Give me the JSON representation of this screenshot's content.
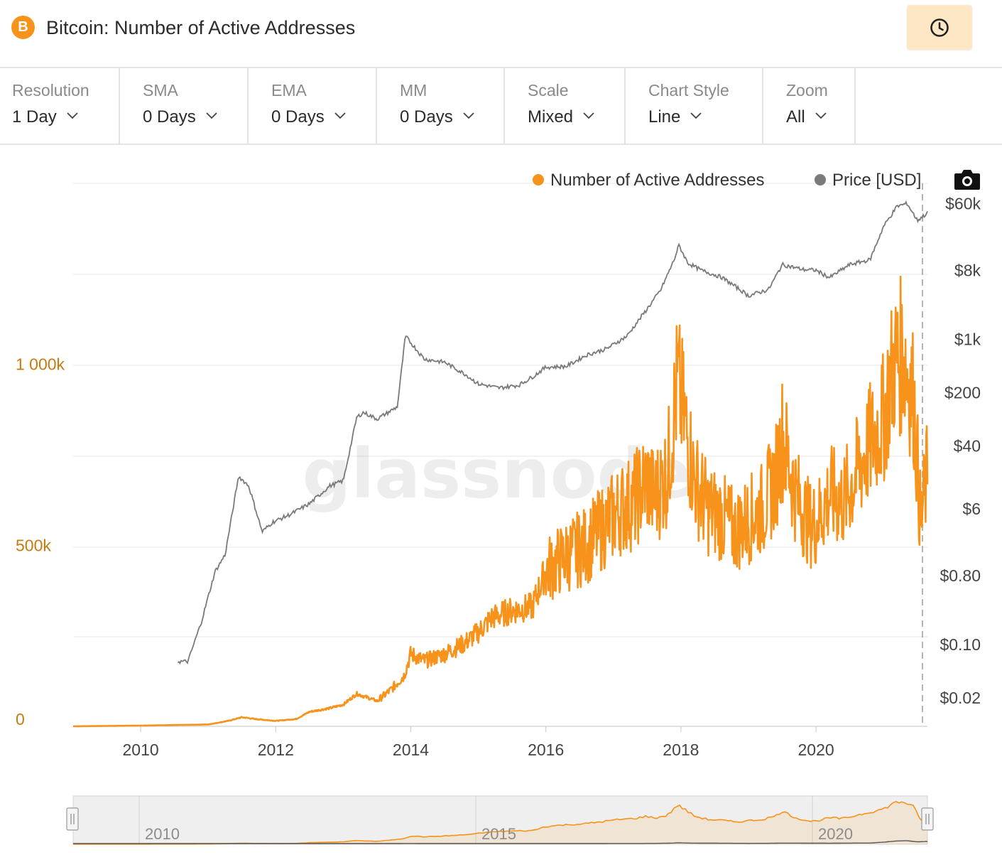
{
  "header": {
    "coin_symbol": "B",
    "title": "Bitcoin: Number of Active Addresses",
    "history_icon": "clock-icon"
  },
  "controls": [
    {
      "label": "Resolution",
      "value": "1 Day"
    },
    {
      "label": "SMA",
      "value": "0 Days"
    },
    {
      "label": "EMA",
      "value": "0 Days"
    },
    {
      "label": "MM",
      "value": "0 Days"
    },
    {
      "label": "Scale",
      "value": "Mixed"
    },
    {
      "label": "Chart Style",
      "value": "Line"
    },
    {
      "label": "Zoom",
      "value": "All"
    }
  ],
  "toolbar": {
    "camera_icon": "camera-icon"
  },
  "chart_data": {
    "type": "line",
    "watermark": "glassnode",
    "legend": [
      "Number of Active Addresses",
      "Price [USD]"
    ],
    "legend_position": "top-right",
    "colors": {
      "active_addresses": "#f7931a",
      "price": "#7a7a7a",
      "left_axis": "#c77a12"
    },
    "x_range": [
      2009.0,
      2021.65
    ],
    "x_ticks": [
      "2010",
      "2012",
      "2014",
      "2016",
      "2018",
      "2020"
    ],
    "x_tick_values": [
      2010,
      2012,
      2014,
      2016,
      2018,
      2020
    ],
    "y_left": {
      "ticks": [
        "0",
        "500k",
        "1 000k"
      ],
      "tick_values": [
        0,
        500000,
        1000000
      ],
      "range": [
        0,
        1500000
      ],
      "scale": "linear"
    },
    "y_right": {
      "ticks": [
        "$0.02",
        "$0.10",
        "$0.80",
        "$6",
        "$40",
        "$200",
        "$1k",
        "$8k",
        "$60k"
      ],
      "tick_values": [
        0.02,
        0.1,
        0.8,
        6,
        40,
        200,
        1000,
        8000,
        60000
      ],
      "scale": "log"
    },
    "series": [
      {
        "name": "Number of Active Addresses",
        "axis": "left",
        "x": [
          2009.0,
          2010.0,
          2011.0,
          2011.3,
          2011.5,
          2011.7,
          2012.0,
          2012.3,
          2012.5,
          2012.8,
          2013.0,
          2013.2,
          2013.35,
          2013.5,
          2013.7,
          2013.9,
          2014.0,
          2014.2,
          2014.5,
          2014.8,
          2015.0,
          2015.2,
          2015.5,
          2015.8,
          2015.9,
          2016.0,
          2016.3,
          2016.6,
          2016.9,
          2017.1,
          2017.3,
          2017.5,
          2017.6,
          2017.8,
          2017.95,
          2018.05,
          2018.2,
          2018.4,
          2018.6,
          2018.8,
          2019.0,
          2019.2,
          2019.4,
          2019.5,
          2019.7,
          2019.9,
          2020.0,
          2020.2,
          2020.4,
          2020.6,
          2020.8,
          2021.0,
          2021.15,
          2021.3,
          2021.45,
          2021.55,
          2021.65
        ],
        "y": [
          0,
          2000,
          5000,
          15000,
          25000,
          20000,
          15000,
          20000,
          40000,
          50000,
          60000,
          90000,
          80000,
          70000,
          100000,
          140000,
          200000,
          180000,
          200000,
          230000,
          260000,
          300000,
          320000,
          330000,
          380000,
          430000,
          470000,
          500000,
          560000,
          600000,
          620000,
          680000,
          630000,
          700000,
          950000,
          850000,
          680000,
          600000,
          580000,
          540000,
          570000,
          600000,
          680000,
          800000,
          640000,
          560000,
          560000,
          640000,
          620000,
          700000,
          780000,
          850000,
          1000000,
          1030000,
          900000,
          560000,
          700000
        ]
      },
      {
        "name": "Price [USD]",
        "axis": "right",
        "x": [
          2010.55,
          2010.7,
          2010.9,
          2011.1,
          2011.25,
          2011.45,
          2011.6,
          2011.8,
          2011.95,
          2012.2,
          2012.5,
          2012.8,
          2013.0,
          2013.2,
          2013.3,
          2013.5,
          2013.8,
          2013.92,
          2014.0,
          2014.2,
          2014.5,
          2014.8,
          2015.0,
          2015.3,
          2015.6,
          2015.8,
          2016.0,
          2016.3,
          2016.6,
          2016.9,
          2017.2,
          2017.5,
          2017.7,
          2017.9,
          2017.97,
          2018.1,
          2018.3,
          2018.6,
          2018.9,
          2019.0,
          2019.3,
          2019.5,
          2019.8,
          2020.0,
          2020.2,
          2020.5,
          2020.8,
          2021.0,
          2021.2,
          2021.35,
          2021.5,
          2021.65
        ],
        "y": [
          0.06,
          0.06,
          0.2,
          0.9,
          1.5,
          16,
          12,
          3,
          4,
          5,
          7,
          12,
          14,
          95,
          110,
          90,
          130,
          1100,
          900,
          550,
          500,
          350,
          260,
          230,
          250,
          320,
          430,
          440,
          620,
          750,
          1100,
          2500,
          4400,
          11000,
          17000,
          10000,
          8000,
          6500,
          4300,
          3700,
          4500,
          9500,
          8200,
          8000,
          6400,
          9500,
          11000,
          30000,
          55000,
          60000,
          36000,
          45000
        ]
      }
    ]
  }
}
